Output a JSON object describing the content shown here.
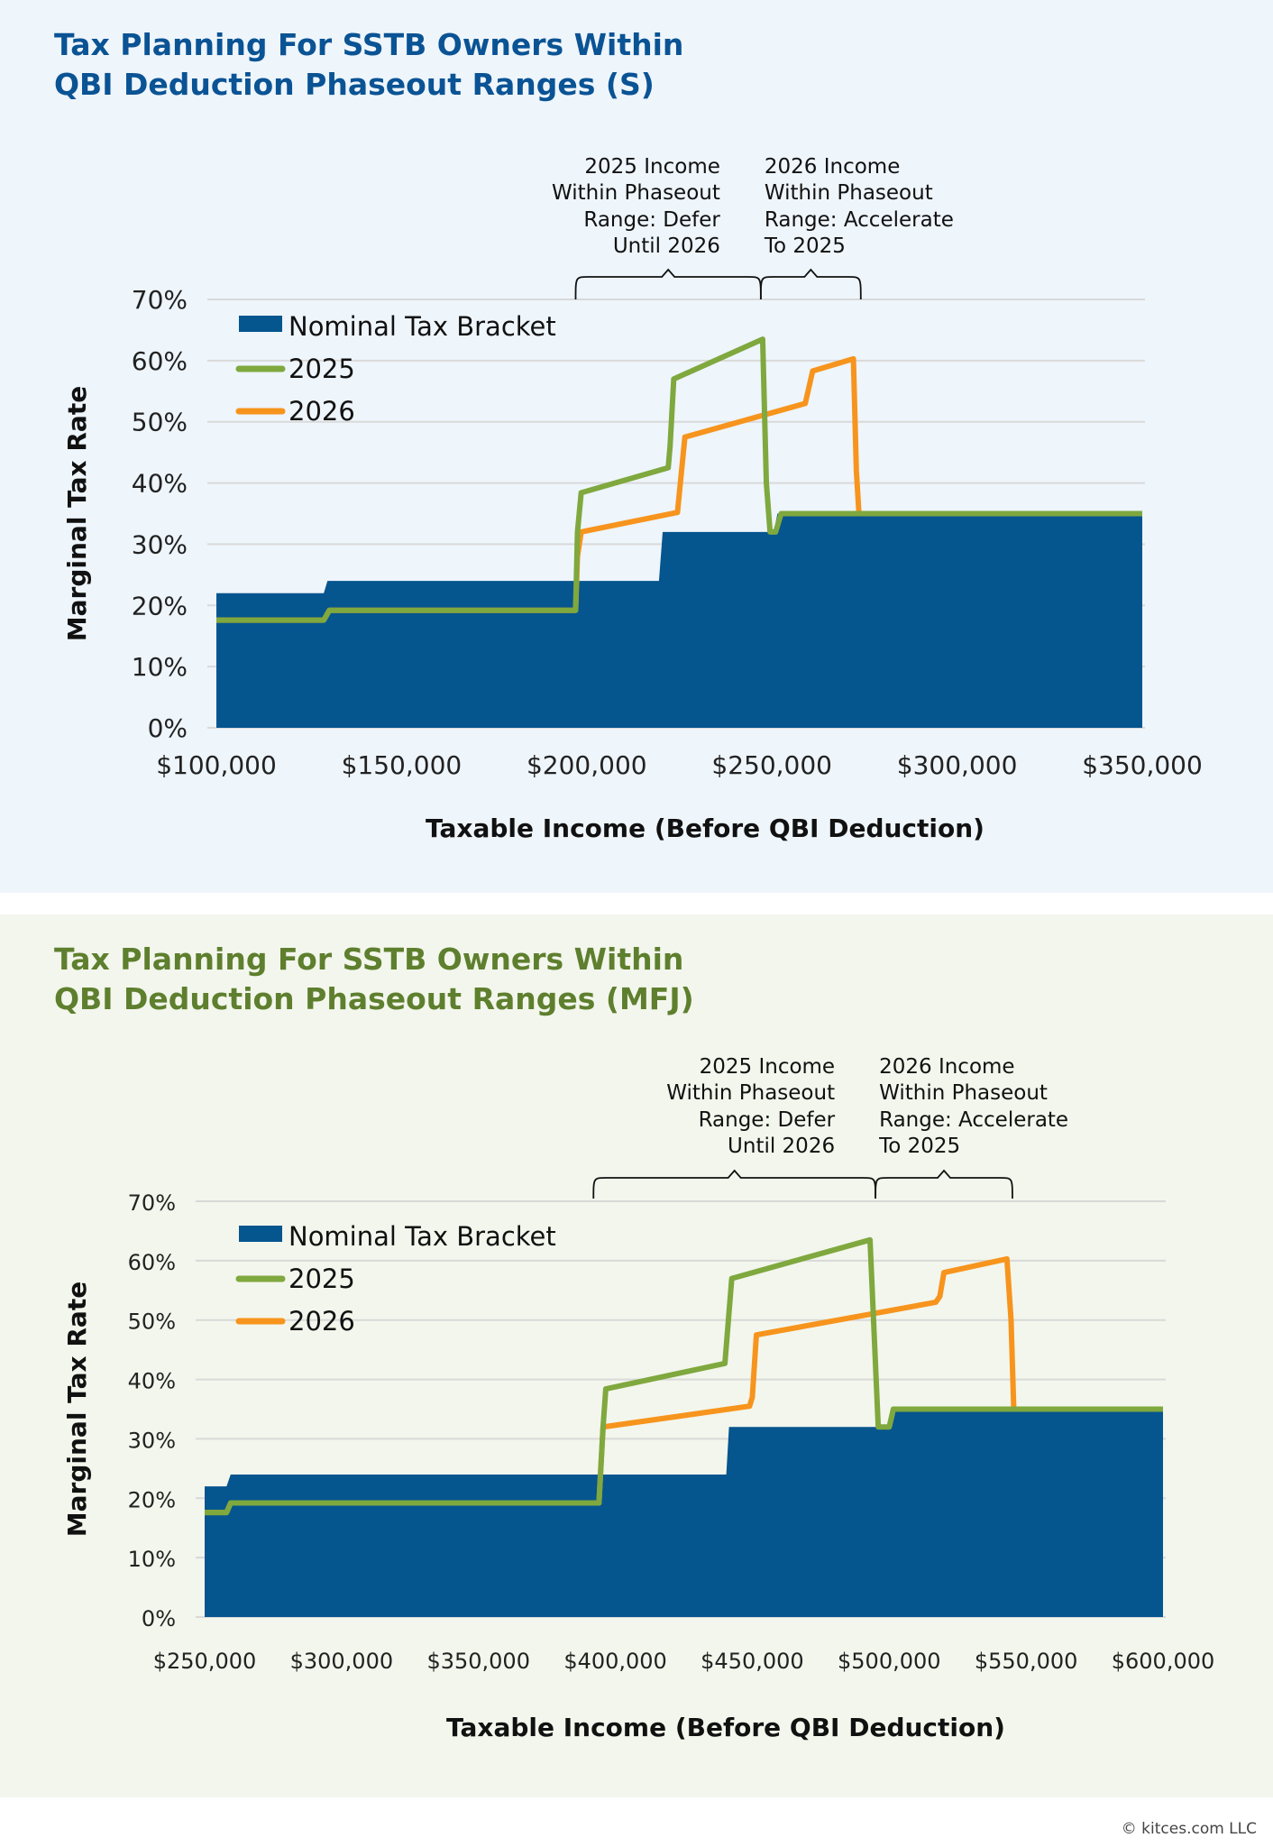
{
  "colors": {
    "nominal": "#05558F",
    "y2025": "#7FA83E",
    "y2026": "#F7941D",
    "grid": "#D9D9D9"
  },
  "footer": "© kitces.com LLC",
  "chart_data": [
    {
      "type": "area+line",
      "title_lines": [
        "Tax Planning For SSTB Owners Within",
        "QBI Deduction Phaseout Ranges (S)"
      ],
      "xlabel": "Taxable Income (Before QBI Deduction)",
      "ylabel": "Marginal Tax Rate",
      "xlim": [
        100000,
        350000
      ],
      "ylim": [
        0,
        70
      ],
      "xticks": [
        "$100,000",
        "$150,000",
        "$200,000",
        "$250,000",
        "$300,000",
        "$350,000"
      ],
      "yticks": [
        "0%",
        "10%",
        "20%",
        "30%",
        "40%",
        "50%",
        "60%",
        "70%"
      ],
      "grid": true,
      "legend": "top-left",
      "series": [
        {
          "name": "Nominal Tax Bracket",
          "kind": "area",
          "points": [
            [
              100000,
              22
            ],
            [
              129000,
              22
            ],
            [
              130000,
              24
            ],
            [
              219500,
              24
            ],
            [
              220500,
              32
            ],
            [
              250500,
              32
            ],
            [
              251500,
              35
            ],
            [
              350000,
              35
            ]
          ]
        },
        {
          "name": "2025",
          "kind": "line",
          "points": [
            [
              100000,
              17.6
            ],
            [
              129000,
              17.6
            ],
            [
              130500,
              19.2
            ],
            [
              197000,
              19.2
            ],
            [
              197500,
              32
            ],
            [
              198500,
              38.4
            ],
            [
              222000,
              42.5
            ],
            [
              222500,
              46
            ],
            [
              223500,
              57
            ],
            [
              247500,
              63.5
            ],
            [
              248500,
              40
            ],
            [
              249500,
              32
            ],
            [
              251000,
              32
            ],
            [
              252500,
              35
            ],
            [
              350000,
              35
            ]
          ]
        },
        {
          "name": "2026",
          "kind": "line",
          "points": [
            [
              100000,
              17.6
            ],
            [
              129000,
              17.6
            ],
            [
              130500,
              19.2
            ],
            [
              197000,
              19.2
            ],
            [
              197500,
              28
            ],
            [
              198500,
              32
            ],
            [
              224500,
              35.2
            ],
            [
              226500,
              47.5
            ],
            [
              259000,
              53
            ],
            [
              261000,
              58.3
            ],
            [
              272000,
              60.3
            ],
            [
              272800,
              42
            ],
            [
              273500,
              35
            ],
            [
              350000,
              35
            ]
          ]
        }
      ],
      "annotations": [
        {
          "lines": [
            "2025 Income",
            "Within Phaseout",
            "Range: Defer",
            "Until 2026"
          ],
          "x_range": [
            197000,
            247000
          ],
          "align": "right"
        },
        {
          "lines": [
            "2026 Income",
            "Within Phaseout",
            "Range: Accelerate",
            "To 2025"
          ],
          "x_range": [
            247000,
            274000
          ],
          "align": "left"
        }
      ]
    },
    {
      "type": "area+line",
      "title_lines": [
        "Tax Planning For SSTB Owners Within",
        "QBI Deduction Phaseout Ranges (MFJ)"
      ],
      "xlabel": "Taxable Income (Before QBI Deduction)",
      "ylabel": "Marginal Tax Rate",
      "xlim": [
        250000,
        600000
      ],
      "ylim": [
        0,
        70
      ],
      "xticks": [
        "$250,000",
        "$300,000",
        "$350,000",
        "$400,000",
        "$450,000",
        "$500,000",
        "$550,000",
        "$600,000"
      ],
      "yticks": [
        "0%",
        "10%",
        "20%",
        "30%",
        "40%",
        "50%",
        "60%",
        "70%"
      ],
      "grid": true,
      "legend": "top-left",
      "series": [
        {
          "name": "Nominal Tax Bracket",
          "kind": "area",
          "points": [
            [
              250000,
              22
            ],
            [
              258000,
              22
            ],
            [
              259500,
              24
            ],
            [
              440500,
              24
            ],
            [
              441500,
              32
            ],
            [
              501000,
              32
            ],
            [
              502500,
              35
            ],
            [
              600000,
              35
            ]
          ]
        },
        {
          "name": "2025",
          "kind": "line",
          "points": [
            [
              250000,
              17.6
            ],
            [
              258000,
              17.6
            ],
            [
              259500,
              19.2
            ],
            [
              394000,
              19.2
            ],
            [
              395500,
              32
            ],
            [
              396500,
              38.4
            ],
            [
              440000,
              42.7
            ],
            [
              442500,
              57
            ],
            [
              493000,
              63.5
            ],
            [
              496000,
              32
            ],
            [
              500000,
              32
            ],
            [
              501500,
              35
            ],
            [
              600000,
              35
            ]
          ]
        },
        {
          "name": "2026",
          "kind": "line",
          "points": [
            [
              250000,
              17.6
            ],
            [
              258000,
              17.6
            ],
            [
              259500,
              19.2
            ],
            [
              394000,
              19.2
            ],
            [
              395500,
              32
            ],
            [
              449000,
              35.5
            ],
            [
              450000,
              37
            ],
            [
              451500,
              47.5
            ],
            [
              517000,
              53
            ],
            [
              518500,
              54
            ],
            [
              520000,
              58
            ],
            [
              543000,
              60.3
            ],
            [
              544500,
              50
            ],
            [
              545500,
              35
            ],
            [
              600000,
              35
            ]
          ]
        }
      ],
      "annotations": [
        {
          "lines": [
            "2025 Income",
            "Within Phaseout",
            "Range: Defer",
            "Until 2026"
          ],
          "x_range": [
            392000,
            495000
          ],
          "align": "right"
        },
        {
          "lines": [
            "2026 Income",
            "Within Phaseout",
            "Range: Accelerate",
            "To 2025"
          ],
          "x_range": [
            495000,
            545000
          ],
          "align": "left"
        }
      ]
    }
  ]
}
